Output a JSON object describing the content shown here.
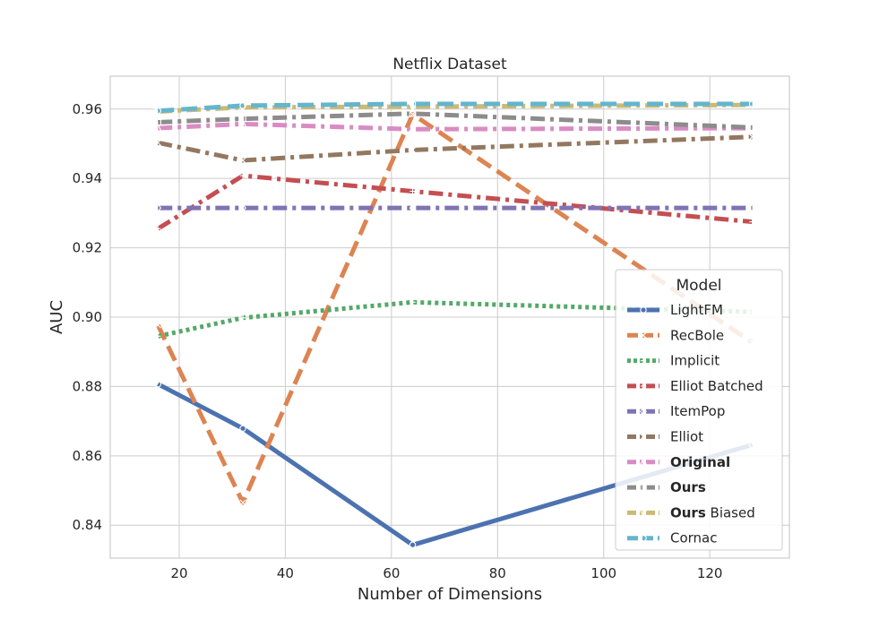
{
  "chart_data": {
    "type": "line",
    "title": "Netflix Dataset",
    "xlabel": "Number of Dimensions",
    "ylabel": "AUC",
    "x": [
      16,
      32,
      64,
      128
    ],
    "xlim": [
      7,
      135
    ],
    "ylim": [
      0.8305,
      0.9695
    ],
    "xticks": [
      20,
      40,
      60,
      80,
      100,
      120
    ],
    "yticks": [
      0.84,
      0.86,
      0.88,
      0.9,
      0.92,
      0.94,
      0.96
    ],
    "xtick_labels": [
      "20",
      "40",
      "60",
      "80",
      "100",
      "120"
    ],
    "ytick_labels": [
      "0.84",
      "0.86",
      "0.88",
      "0.90",
      "0.92",
      "0.94",
      "0.96"
    ],
    "grid": true,
    "legend_title": "Model",
    "legend_position": "lower-right",
    "series": [
      {
        "name": "LightFM",
        "bold_part": "",
        "rest_part": "LightFM",
        "values": [
          0.8807,
          0.8679,
          0.8343,
          0.8632
        ],
        "color": "#4c72b0",
        "dash": "solid",
        "marker": "circle"
      },
      {
        "name": "RecBole",
        "bold_part": "",
        "rest_part": "RecBole",
        "values": [
          0.8977,
          0.8465,
          0.9585,
          0.8927
        ],
        "color": "#dd8452",
        "dash": "dashed",
        "marker": "x"
      },
      {
        "name": "Implicit",
        "bold_part": "",
        "rest_part": "Implicit",
        "values": [
          0.8945,
          0.8998,
          0.9043,
          0.9015
        ],
        "color": "#55a868",
        "dash": "dotted",
        "marker": "plus"
      },
      {
        "name": "Elliot Batched",
        "bold_part": "",
        "rest_part": "Elliot Batched",
        "values": [
          0.9255,
          0.9408,
          0.9363,
          0.9275
        ],
        "color": "#c44e52",
        "dash": "dashdot",
        "marker": "plus"
      },
      {
        "name": "ItemPop",
        "bold_part": "",
        "rest_part": "ItemPop",
        "values": [
          0.9315,
          0.9315,
          0.9315,
          0.9315
        ],
        "color": "#8172b3",
        "dash": "dashdot",
        "marker": "diamond"
      },
      {
        "name": "Elliot",
        "bold_part": "",
        "rest_part": "Elliot",
        "values": [
          0.9503,
          0.9452,
          0.9482,
          0.952
        ],
        "color": "#937860",
        "dash": "dashdot",
        "marker": "x"
      },
      {
        "name": "Original",
        "bold_part": "Original",
        "rest_part": "",
        "values": [
          0.9545,
          0.9557,
          0.9542,
          0.9545
        ],
        "color": "#da8bc3",
        "dash": "dashdot",
        "marker": "triangle"
      },
      {
        "name": "Ours",
        "bold_part": "Ours",
        "rest_part": "",
        "values": [
          0.9562,
          0.9572,
          0.9587,
          0.9547
        ],
        "color": "#8c8c8c",
        "dash": "dashdot",
        "marker": "square"
      },
      {
        "name": "Ours Biased",
        "bold_part": "Ours",
        "rest_part": " Biased",
        "values": [
          0.9593,
          0.9605,
          0.9607,
          0.9612
        ],
        "color": "#ccb974",
        "dash": "dashdot",
        "marker": "triangle-down"
      },
      {
        "name": "Cornac",
        "bold_part": "",
        "rest_part": "Cornac",
        "values": [
          0.9595,
          0.961,
          0.9615,
          0.9615
        ],
        "color": "#64b5cd",
        "dash": "dashed",
        "marker": "circle"
      }
    ]
  }
}
